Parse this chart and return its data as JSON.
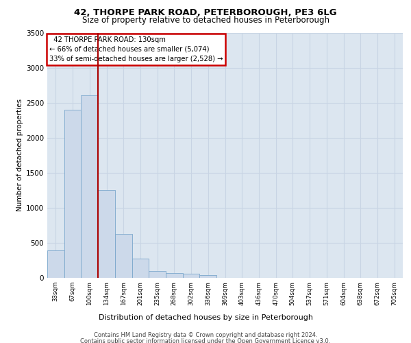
{
  "title1": "42, THORPE PARK ROAD, PETERBOROUGH, PE3 6LG",
  "title2": "Size of property relative to detached houses in Peterborough",
  "xlabel": "Distribution of detached houses by size in Peterborough",
  "ylabel": "Number of detached properties",
  "footer1": "Contains HM Land Registry data © Crown copyright and database right 2024.",
  "footer2": "Contains public sector information licensed under the Open Government Licence v3.0.",
  "annotation_line1": "  42 THORPE PARK ROAD: 130sqm",
  "annotation_line2": "← 66% of detached houses are smaller (5,074)",
  "annotation_line3": "33% of semi-detached houses are larger (2,528) →",
  "categories": [
    "33sqm",
    "67sqm",
    "100sqm",
    "134sqm",
    "167sqm",
    "201sqm",
    "235sqm",
    "268sqm",
    "302sqm",
    "336sqm",
    "369sqm",
    "403sqm",
    "436sqm",
    "470sqm",
    "504sqm",
    "537sqm",
    "571sqm",
    "604sqm",
    "638sqm",
    "672sqm",
    "705sqm"
  ],
  "values": [
    390,
    2400,
    2600,
    1250,
    630,
    275,
    100,
    70,
    60,
    40,
    0,
    0,
    0,
    0,
    0,
    0,
    0,
    0,
    0,
    0,
    0
  ],
  "bar_color": "#ccd9ea",
  "bar_edge_color": "#7ba7cc",
  "vline_color": "#aa0000",
  "vline_index": 3,
  "ylim": [
    0,
    3500
  ],
  "yticks": [
    0,
    500,
    1000,
    1500,
    2000,
    2500,
    3000,
    3500
  ],
  "grid_color": "#c8d4e4",
  "bg_color": "#dce6f0",
  "fig_bg": "#ffffff",
  "annotation_box_edge": "#cc0000"
}
